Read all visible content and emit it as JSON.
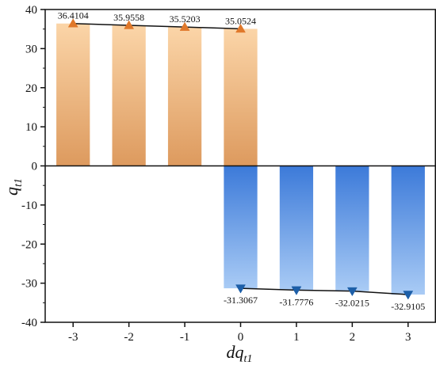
{
  "chart_data": {
    "type": "bar",
    "xlabel": {
      "base": "dq",
      "sub": "t1"
    },
    "ylabel": {
      "base": "q",
      "sub": "t1"
    },
    "ylim": [
      -40,
      40
    ],
    "xlim": [
      -3.5,
      3.5
    ],
    "yticks": [
      40,
      30,
      20,
      10,
      0,
      -10,
      -20,
      -30,
      -40
    ],
    "xticks": [
      -3,
      -2,
      -1,
      0,
      1,
      2,
      3
    ],
    "grid": false,
    "series": [
      {
        "x": [
          -3,
          -2,
          -1,
          0
        ],
        "values": [
          36.4104,
          35.9558,
          35.5203,
          35.0524
        ],
        "labels": [
          "36.4104",
          "35.9558",
          "35.5203",
          "35.0524"
        ],
        "marker": "triangle-up",
        "bar_gradient": [
          "#fbd5a8",
          "#dd9a5e"
        ],
        "marker_color": "#e0782a"
      },
      {
        "x": [
          0,
          1,
          2,
          3
        ],
        "values": [
          -31.3067,
          -31.7776,
          -32.0215,
          -32.9105
        ],
        "labels": [
          "-31.3067",
          "-31.7776",
          "-32.0215",
          "-32.9105"
        ],
        "marker": "triangle-down",
        "bar_gradient": [
          "#3c7ad9",
          "#a9cbf5"
        ],
        "marker_color": "#1d5fa8"
      }
    ]
  }
}
